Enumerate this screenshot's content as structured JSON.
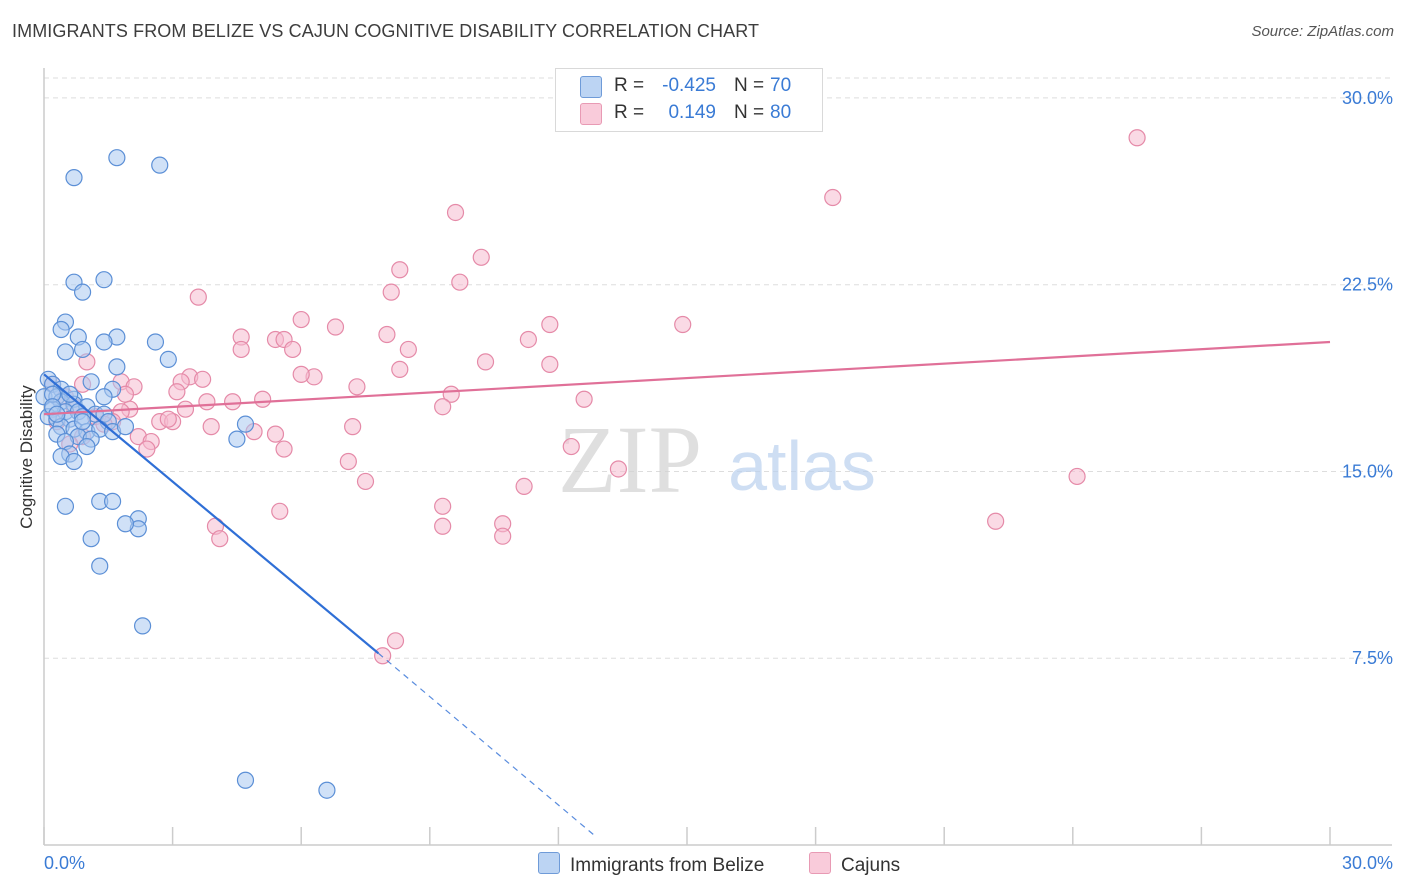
{
  "title": "IMMIGRANTS FROM BELIZE VS CAJUN COGNITIVE DISABILITY CORRELATION CHART",
  "source": "Source: ZipAtlas.com",
  "watermark": {
    "zip": "ZIP",
    "atlas": "atlas"
  },
  "colors": {
    "blue_fill": "#a9c8f0",
    "blue_stroke": "#5b8fd6",
    "blue_line": "#2f6fd6",
    "pink_fill": "#f6bccf",
    "pink_stroke": "#e58aa8",
    "pink_line": "#e07098",
    "tick_label": "#3a7bd5",
    "grid": "#dddddd"
  },
  "legend": {
    "r_label": "R =",
    "n_label": "N =",
    "series": [
      {
        "name": "Immigrants from Belize",
        "r": "-0.425",
        "n": "70"
      },
      {
        "name": "Cajuns",
        "r": "0.149",
        "n": "80"
      }
    ]
  },
  "chart_data": {
    "type": "scatter",
    "title": "IMMIGRANTS FROM BELIZE VS CAJUN COGNITIVE DISABILITY CORRELATION CHART",
    "xlabel": "",
    "ylabel": "Cognitive Disability",
    "xlim": [
      0,
      30
    ],
    "ylim": [
      0,
      30.8
    ],
    "x_tick_labels": [
      "0.0%",
      "30.0%"
    ],
    "y_ticks": [
      7.5,
      15.0,
      22.5,
      30.0
    ],
    "y_tick_labels": [
      "7.5%",
      "15.0%",
      "22.5%",
      "30.0%"
    ],
    "grid": true,
    "legend_position": "top-center",
    "series": [
      {
        "name": "Immigrants from Belize",
        "color": "blue",
        "trend": {
          "x0": 0.0,
          "y0": 18.9,
          "x1": 7.8,
          "y1": 7.7,
          "dash_to_x": 12.9,
          "dash_to_y": 0.3
        },
        "points": [
          [
            0.7,
            17.9
          ],
          [
            1.7,
            27.6
          ],
          [
            2.7,
            27.3
          ],
          [
            0.7,
            26.8
          ],
          [
            0.7,
            22.6
          ],
          [
            1.4,
            22.7
          ],
          [
            0.9,
            22.2
          ],
          [
            0.5,
            21.0
          ],
          [
            0.4,
            20.7
          ],
          [
            0.8,
            20.4
          ],
          [
            1.7,
            20.4
          ],
          [
            2.6,
            20.2
          ],
          [
            1.4,
            20.2
          ],
          [
            0.5,
            19.8
          ],
          [
            0.9,
            19.9
          ],
          [
            2.9,
            19.5
          ],
          [
            1.7,
            19.2
          ],
          [
            0.1,
            18.7
          ],
          [
            0.2,
            18.5
          ],
          [
            0.4,
            18.3
          ],
          [
            1.1,
            18.6
          ],
          [
            1.6,
            18.3
          ],
          [
            1.4,
            18.0
          ],
          [
            0.0,
            18.0
          ],
          [
            0.3,
            18.0
          ],
          [
            0.4,
            17.8
          ],
          [
            0.7,
            17.7
          ],
          [
            1.0,
            17.6
          ],
          [
            0.2,
            17.5
          ],
          [
            0.5,
            17.4
          ],
          [
            0.8,
            17.4
          ],
          [
            1.2,
            17.3
          ],
          [
            1.4,
            17.3
          ],
          [
            0.1,
            17.2
          ],
          [
            0.3,
            17.1
          ],
          [
            0.6,
            17.1
          ],
          [
            0.9,
            17.2
          ],
          [
            1.5,
            17.0
          ],
          [
            0.4,
            16.8
          ],
          [
            0.7,
            16.7
          ],
          [
            1.0,
            16.6
          ],
          [
            1.3,
            16.7
          ],
          [
            1.6,
            16.6
          ],
          [
            1.9,
            16.8
          ],
          [
            0.3,
            16.5
          ],
          [
            0.8,
            16.4
          ],
          [
            1.1,
            16.3
          ],
          [
            0.5,
            16.2
          ],
          [
            1.0,
            16.0
          ],
          [
            0.6,
            15.7
          ],
          [
            0.4,
            15.6
          ],
          [
            0.7,
            15.4
          ],
          [
            4.7,
            16.9
          ],
          [
            4.5,
            16.3
          ],
          [
            0.5,
            13.6
          ],
          [
            1.3,
            13.8
          ],
          [
            1.6,
            13.8
          ],
          [
            2.2,
            13.1
          ],
          [
            2.2,
            12.7
          ],
          [
            1.9,
            12.9
          ],
          [
            1.1,
            12.3
          ],
          [
            1.3,
            11.2
          ],
          [
            2.3,
            8.8
          ],
          [
            4.7,
            2.6
          ],
          [
            6.6,
            2.2
          ],
          [
            0.2,
            18.1
          ],
          [
            0.6,
            18.1
          ],
          [
            0.2,
            17.6
          ],
          [
            0.3,
            17.3
          ],
          [
            0.9,
            17.0
          ]
        ]
      },
      {
        "name": "Cajuns",
        "color": "pink",
        "trend": {
          "x0": 0.0,
          "y0": 17.3,
          "x1": 30.0,
          "y1": 20.2
        },
        "points": [
          [
            25.5,
            28.4
          ],
          [
            18.4,
            26.0
          ],
          [
            9.6,
            25.4
          ],
          [
            10.2,
            23.6
          ],
          [
            8.3,
            23.1
          ],
          [
            9.7,
            22.6
          ],
          [
            8.1,
            22.2
          ],
          [
            3.6,
            22.0
          ],
          [
            6.0,
            21.1
          ],
          [
            6.8,
            20.8
          ],
          [
            11.8,
            20.9
          ],
          [
            14.9,
            20.9
          ],
          [
            4.6,
            20.4
          ],
          [
            5.4,
            20.3
          ],
          [
            5.6,
            20.3
          ],
          [
            8.0,
            20.5
          ],
          [
            11.3,
            20.3
          ],
          [
            4.6,
            19.9
          ],
          [
            5.8,
            19.9
          ],
          [
            8.5,
            19.9
          ],
          [
            10.3,
            19.4
          ],
          [
            11.8,
            19.3
          ],
          [
            1.0,
            19.4
          ],
          [
            8.3,
            19.1
          ],
          [
            6.3,
            18.8
          ],
          [
            3.4,
            18.8
          ],
          [
            3.7,
            18.7
          ],
          [
            3.2,
            18.6
          ],
          [
            1.8,
            18.6
          ],
          [
            0.2,
            18.5
          ],
          [
            0.9,
            18.5
          ],
          [
            2.1,
            18.4
          ],
          [
            1.9,
            18.1
          ],
          [
            7.3,
            18.4
          ],
          [
            3.1,
            18.2
          ],
          [
            9.5,
            18.1
          ],
          [
            12.6,
            17.9
          ],
          [
            5.1,
            17.9
          ],
          [
            4.4,
            17.8
          ],
          [
            3.8,
            17.8
          ],
          [
            9.3,
            17.6
          ],
          [
            0.7,
            17.6
          ],
          [
            2.0,
            17.5
          ],
          [
            3.3,
            17.5
          ],
          [
            1.8,
            17.4
          ],
          [
            1.6,
            17.0
          ],
          [
            2.7,
            17.0
          ],
          [
            3.0,
            17.0
          ],
          [
            3.9,
            16.8
          ],
          [
            7.2,
            16.8
          ],
          [
            4.9,
            16.6
          ],
          [
            5.4,
            16.5
          ],
          [
            0.9,
            16.4
          ],
          [
            2.2,
            16.4
          ],
          [
            2.5,
            16.2
          ],
          [
            0.6,
            16.1
          ],
          [
            2.4,
            15.9
          ],
          [
            5.6,
            15.9
          ],
          [
            12.3,
            16.0
          ],
          [
            7.1,
            15.4
          ],
          [
            13.4,
            15.1
          ],
          [
            7.5,
            14.6
          ],
          [
            11.2,
            14.4
          ],
          [
            24.1,
            14.8
          ],
          [
            9.3,
            13.6
          ],
          [
            5.5,
            13.4
          ],
          [
            4.0,
            12.8
          ],
          [
            4.1,
            12.3
          ],
          [
            9.3,
            12.8
          ],
          [
            10.7,
            12.9
          ],
          [
            10.7,
            12.4
          ],
          [
            22.2,
            13.0
          ],
          [
            8.2,
            8.2
          ],
          [
            7.9,
            7.6
          ],
          [
            0.5,
            18.0
          ],
          [
            1.2,
            17.2
          ],
          [
            0.3,
            17.0
          ],
          [
            2.9,
            17.1
          ],
          [
            6.0,
            18.9
          ],
          [
            1.4,
            16.9
          ]
        ]
      }
    ]
  }
}
